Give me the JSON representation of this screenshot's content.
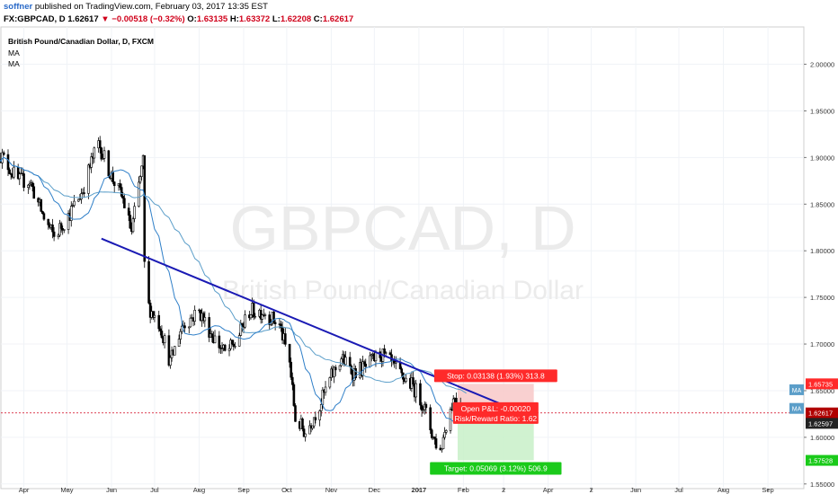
{
  "header": {
    "user": "soffner",
    "published_text": "published on TradingView.com, February 03, 2017 13:35 EST",
    "symbol": "FX:GBPCAD, D",
    "last": "1.62617",
    "arrow": "▼",
    "change": "−0.00518 (−0.32%)",
    "o_label": "O:",
    "o_value": "1.63135",
    "h_label": "H:",
    "h_value": "1.63372",
    "l_label": "L:",
    "l_value": "1.62208",
    "c_label": "C:",
    "c_value": "1.62617"
  },
  "legend": {
    "title": "British Pound/Canadian Dollar, D, FXCM",
    "ma1": "MA",
    "ma2": "MA"
  },
  "watermark": {
    "big": "GBPCAD, D",
    "small": "British Pound/Canadian Dollar"
  },
  "position": {
    "stop": "Stop: 0.03138 (1.93%) 313.8",
    "pnl": "Open P&L: -0.00020",
    "rr": "Risk/Reward Ratio: 1.62",
    "target": "Target: 0.05069 (3.12%) 506.9"
  },
  "price_badges": {
    "stop": "1.65735",
    "current": "1.62617",
    "entry": "1.62597",
    "target": "1.57528",
    "ma_a": "MA",
    "ma_b": "MA"
  },
  "colors": {
    "up": "#ffffff",
    "down": "#000000",
    "candle_border": "#000000",
    "ma_fast": "#2f7fc8",
    "ma_slow": "#5b9ec9",
    "trendline": "#1a1ab4",
    "stop_zone": "#f8c8c8",
    "target_zone": "#c8f0c8",
    "stop_label": "#ff2a2a",
    "target_label": "#1aca1a",
    "current_line": "#d0021b"
  },
  "chart_data": {
    "type": "candlestick",
    "symbol": "GBPCAD",
    "timeframe": "D",
    "y_ticks": [
      "2.00000",
      "1.95000",
      "1.90000",
      "1.85000",
      "1.80000",
      "1.75000",
      "1.70000",
      "1.65000",
      "1.60000",
      "1.55000"
    ],
    "ylim": [
      1.545,
      2.04
    ],
    "x_ticks": [
      "Apr",
      "May",
      "Jun",
      "Jul",
      "Aug",
      "Sep",
      "Oct",
      "Nov",
      "Dec",
      "2017",
      "Feb",
      "2",
      "Apr",
      "2",
      "Jun",
      "Jul",
      "Aug",
      "Sep"
    ],
    "x_tick_dates": [
      "2016-04-01",
      "2016-05-01",
      "2016-06-01",
      "2016-07-01",
      "2016-08-01",
      "2016-09-01",
      "2016-10-01",
      "2016-11-01",
      "2016-12-01",
      "2017-01-01",
      "2017-02-01",
      "2017-03-01",
      "2017-04-01",
      "2017-05-01",
      "2017-06-01",
      "2017-07-01",
      "2017-08-01",
      "2017-09-01"
    ],
    "close_anchors": [
      [
        "2016-03-15",
        1.905
      ],
      [
        "2016-03-28",
        1.875
      ],
      [
        "2016-04-05",
        1.875
      ],
      [
        "2016-04-15",
        1.835
      ],
      [
        "2016-04-22",
        1.815
      ],
      [
        "2016-05-03",
        1.84
      ],
      [
        "2016-05-12",
        1.865
      ],
      [
        "2016-05-18",
        1.895
      ],
      [
        "2016-05-23",
        1.915
      ],
      [
        "2016-06-01",
        1.88
      ],
      [
        "2016-06-09",
        1.855
      ],
      [
        "2016-06-15",
        1.82
      ],
      [
        "2016-06-20",
        1.87
      ],
      [
        "2016-06-23",
        1.895
      ],
      [
        "2016-06-24",
        1.785
      ],
      [
        "2016-06-27",
        1.74
      ],
      [
        "2016-07-05",
        1.72
      ],
      [
        "2016-07-12",
        1.68
      ],
      [
        "2016-07-20",
        1.72
      ],
      [
        "2016-08-01",
        1.735
      ],
      [
        "2016-08-10",
        1.71
      ],
      [
        "2016-08-19",
        1.69
      ],
      [
        "2016-08-26",
        1.7
      ],
      [
        "2016-09-05",
        1.735
      ],
      [
        "2016-09-15",
        1.735
      ],
      [
        "2016-09-26",
        1.72
      ],
      [
        "2016-10-03",
        1.68
      ],
      [
        "2016-10-07",
        1.62
      ],
      [
        "2016-10-14",
        1.605
      ],
      [
        "2016-10-24",
        1.635
      ],
      [
        "2016-11-01",
        1.665
      ],
      [
        "2016-11-08",
        1.685
      ],
      [
        "2016-11-16",
        1.67
      ],
      [
        "2016-11-25",
        1.675
      ],
      [
        "2016-12-05",
        1.69
      ],
      [
        "2016-12-12",
        1.68
      ],
      [
        "2016-12-20",
        1.665
      ],
      [
        "2016-12-28",
        1.655
      ],
      [
        "2017-01-04",
        1.635
      ],
      [
        "2017-01-11",
        1.6
      ],
      [
        "2017-01-16",
        1.585
      ],
      [
        "2017-01-20",
        1.615
      ],
      [
        "2017-01-26",
        1.645
      ],
      [
        "2017-02-03",
        1.62617
      ]
    ],
    "moving_averages": [
      {
        "name": "MA",
        "period_style": "fast",
        "color": "#2f7fc8"
      },
      {
        "name": "MA",
        "period_style": "slow",
        "color": "#5b9ec9"
      }
    ],
    "trendline": {
      "start": [
        "2016-05-25",
        1.813
      ],
      "end": [
        "2017-03-05",
        1.632
      ]
    },
    "position_tool": {
      "entry": 1.62597,
      "stop": 1.65735,
      "target": 1.57528,
      "start_date": "2017-01-28",
      "end_date": "2017-03-22"
    },
    "current_price": 1.62617
  }
}
